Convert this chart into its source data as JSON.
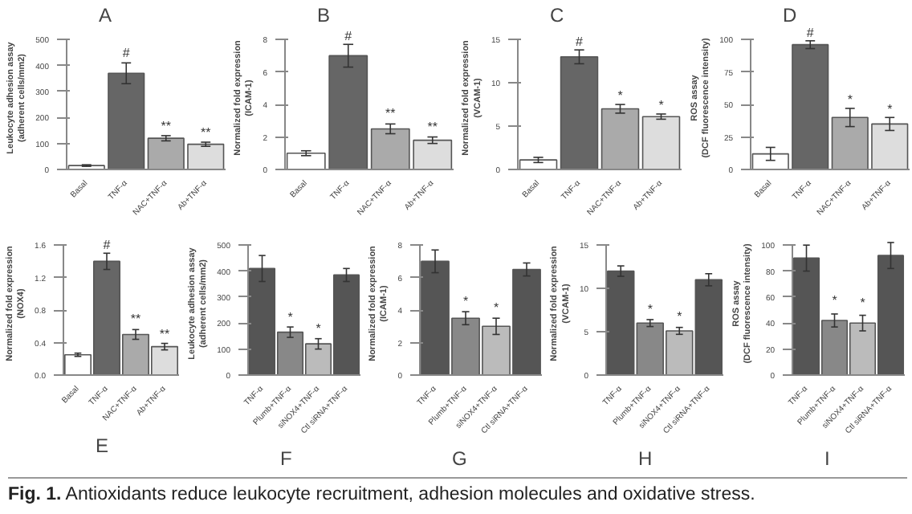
{
  "chart_data": [
    {
      "type": "bar",
      "title": "A",
      "ylabel": "Leukocyte adhesion assay\n(adherent cells/mm2)",
      "categories": [
        "Basal",
        "TNF-α",
        "NAC+TNF-α",
        "Ab+TNF-α"
      ],
      "values": [
        15,
        370,
        120,
        97
      ],
      "errors": [
        3,
        40,
        10,
        8
      ],
      "colors": [
        "#ffffff",
        "#666666",
        "#aaaaaa",
        "#dddddd"
      ],
      "ylim": [
        0,
        500
      ],
      "yticks": [
        0,
        100,
        200,
        300,
        400,
        500
      ],
      "annotations": [
        {
          "text": "#",
          "x": "TNF-α",
          "y": 420
        },
        {
          "text": "**",
          "x": "NAC+TNF-α",
          "y": 140
        },
        {
          "text": "**",
          "x": "Ab+TNF-α",
          "y": 115
        }
      ]
    },
    {
      "type": "bar",
      "title": "B",
      "ylabel": "Normalized fold expression\n(ICAM-1)",
      "categories": [
        "Basal",
        "TNF-α",
        "NAC+TNF-α",
        "Ab+TNF-α"
      ],
      "values": [
        1.0,
        7.0,
        2.5,
        1.8
      ],
      "errors": [
        0.15,
        0.7,
        0.3,
        0.2
      ],
      "colors": [
        "#ffffff",
        "#666666",
        "#aaaaaa",
        "#dddddd"
      ],
      "ylim": [
        0,
        8
      ],
      "yticks": [
        0,
        2,
        4,
        6,
        8
      ],
      "annotations": [
        {
          "text": "#",
          "x": "TNF-α",
          "y": 7.75
        },
        {
          "text": "**",
          "x": "NAC+TNF-α",
          "y": 3.0
        },
        {
          "text": "**",
          "x": "Ab+TNF-α",
          "y": 2.2
        }
      ]
    },
    {
      "type": "bar",
      "title": "C",
      "ylabel": "Normalized fold expression\n(VCAM-1)",
      "categories": [
        "Basal",
        "TNF-α",
        "NAC+TNF-α",
        "Ab+TNF-α"
      ],
      "values": [
        1.1,
        13,
        7,
        6.1
      ],
      "errors": [
        0.3,
        0.8,
        0.5,
        0.3
      ],
      "colors": [
        "#ffffff",
        "#666666",
        "#aaaaaa",
        "#dddddd"
      ],
      "ylim": [
        0,
        15
      ],
      "yticks": [
        0,
        5,
        10,
        15
      ],
      "annotations": [
        {
          "text": "#",
          "x": "TNF-α",
          "y": 13.9
        },
        {
          "text": "*",
          "x": "NAC+TNF-α",
          "y": 7.7
        },
        {
          "text": "*",
          "x": "Ab+TNF-α",
          "y": 6.6
        }
      ]
    },
    {
      "type": "bar",
      "title": "D",
      "ylabel": "ROS assay\n(DCF fluorescence intensity)",
      "categories": [
        "Basal",
        "TNF-α",
        "NAC+TNF-α",
        "Ab+TNF-α"
      ],
      "values": [
        12,
        96,
        40,
        35
      ],
      "errors": [
        5,
        3,
        7,
        5
      ],
      "colors": [
        "#ffffff",
        "#666666",
        "#aaaaaa",
        "#dddddd"
      ],
      "ylim": [
        0,
        100
      ],
      "yticks": [
        0,
        25,
        50,
        75,
        100
      ],
      "annotations": [
        {
          "text": "#",
          "x": "TNF-α",
          "y": 99.5
        },
        {
          "text": "*",
          "x": "NAC+TNF-α",
          "y": 48
        },
        {
          "text": "*",
          "x": "Ab+TNF-α",
          "y": 41
        }
      ]
    },
    {
      "type": "bar",
      "title": "E",
      "ylabel": "Normalized fold expression\n(NOX4)",
      "categories": [
        "Basal",
        "TNF-α",
        "NAC+TNF-α",
        "Ab+TNF-α"
      ],
      "values": [
        0.25,
        1.4,
        0.5,
        0.35
      ],
      "errors": [
        0.02,
        0.1,
        0.06,
        0.04
      ],
      "colors": [
        "#ffffff",
        "#666666",
        "#aaaaaa",
        "#dddddd"
      ],
      "ylim": [
        0,
        1.6
      ],
      "yticks": [
        {
          "value": 0,
          "label": "0.0"
        },
        0.4,
        0.8,
        1.2,
        1.6
      ],
      "annotations": [
        {
          "text": "#",
          "x": "TNF-α",
          "y": 1.51
        },
        {
          "text": "**",
          "x": "NAC+TNF-α",
          "y": 0.6
        },
        {
          "text": "**",
          "x": "Ab+TNF-α",
          "y": 0.42
        }
      ]
    },
    {
      "type": "bar",
      "title": "F",
      "ylabel": "Leukocyte adhesion assay\n(adherent cells/mm2)",
      "categories": [
        "TNF-α",
        "Plumb+TNF-α",
        "siNOX4+TNF-α",
        "Ctl siRNA+TNF-α"
      ],
      "values": [
        410,
        165,
        120,
        385
      ],
      "errors": [
        50,
        20,
        20,
        25
      ],
      "colors": [
        "#555555",
        "#888888",
        "#bbbbbb",
        "#555555"
      ],
      "ylim": [
        0,
        500
      ],
      "yticks": [
        0,
        100,
        200,
        300,
        400,
        500
      ],
      "annotations": [
        {
          "text": "*",
          "x": "Plumb+TNF-α",
          "y": 195
        },
        {
          "text": "*",
          "x": "siNOX4+TNF-α",
          "y": 150
        }
      ]
    },
    {
      "type": "bar",
      "title": "G",
      "ylabel": "Normalized fold expression\n(ICAM-1)",
      "categories": [
        "TNF-α",
        "Plumb+TNF-α",
        "siNOX4+TNF-α",
        "Ctl siRNA+TNF-α"
      ],
      "values": [
        7,
        3.5,
        3.0,
        6.5
      ],
      "errors": [
        0.7,
        0.4,
        0.5,
        0.4
      ],
      "colors": [
        "#555555",
        "#888888",
        "#bbbbbb",
        "#555555"
      ],
      "ylim": [
        0,
        8
      ],
      "yticks": [
        0,
        2,
        4,
        6,
        8
      ],
      "annotations": [
        {
          "text": "*",
          "x": "Plumb+TNF-α",
          "y": 4.1
        },
        {
          "text": "*",
          "x": "siNOX4+TNF-α",
          "y": 3.7
        }
      ]
    },
    {
      "type": "bar",
      "title": "H",
      "ylabel": "Normalized fold expression\n(VCAM-1)",
      "categories": [
        "TNF-α",
        "Plumb+TNF-α",
        "siNOX4+TNF-α",
        "Ctl siRNA+TNF-α"
      ],
      "values": [
        12,
        6,
        5.1,
        11
      ],
      "errors": [
        0.6,
        0.4,
        0.4,
        0.7
      ],
      "colors": [
        "#555555",
        "#888888",
        "#bbbbbb",
        "#555555"
      ],
      "ylim": [
        0,
        15
      ],
      "yticks": [
        0,
        5,
        10,
        15
      ],
      "annotations": [
        {
          "text": "*",
          "x": "Plumb+TNF-α",
          "y": 6.8
        },
        {
          "text": "*",
          "x": "siNOX4+TNF-α",
          "y": 5.9
        }
      ]
    },
    {
      "type": "bar",
      "title": "I",
      "ylabel": "ROS assay\n(DCF fluorescence intensity)",
      "categories": [
        "TNF-α",
        "Plumb+TNF-α",
        "siNOX4+TNF-α",
        "Ctl siRNA+TNF-α"
      ],
      "values": [
        90,
        42,
        40,
        92
      ],
      "errors": [
        10,
        5,
        6,
        10
      ],
      "colors": [
        "#555555",
        "#888888",
        "#bbbbbb",
        "#555555"
      ],
      "ylim": [
        0,
        100
      ],
      "yticks": [
        0,
        20,
        40,
        60,
        80,
        100
      ],
      "annotations": [
        {
          "text": "*",
          "x": "Plumb+TNF-α",
          "y": 52
        },
        {
          "text": "*",
          "x": "siNOX4+TNF-α",
          "y": 50
        }
      ]
    },
    {
      "type": "other",
      "annotations": [
        "Fig. 1. Antioxidants reduce leukocyte recruitment, adhesion molecules and oxidative stress."
      ]
    }
  ]
}
